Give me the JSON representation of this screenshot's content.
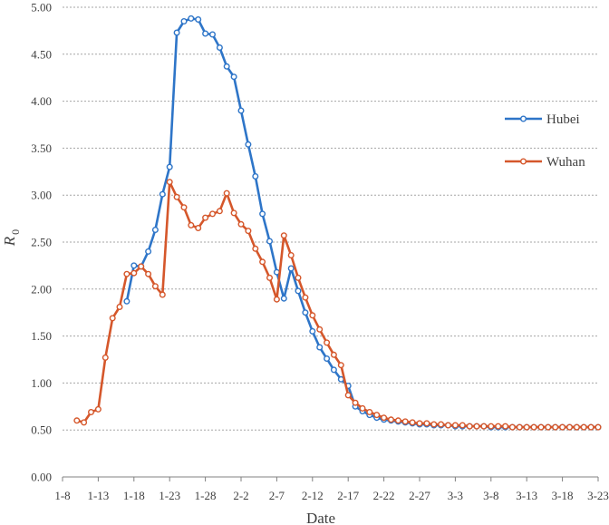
{
  "chart_data": {
    "type": "line",
    "xlabel": "Date",
    "ylabel_symbol": "R",
    "ylabel_subscript": "0",
    "ylim": [
      0,
      5
    ],
    "y_ticks": [
      "0.00",
      "0.50",
      "1.00",
      "1.50",
      "2.00",
      "2.50",
      "3.00",
      "3.50",
      "4.00",
      "4.50",
      "5.00"
    ],
    "x_ticks": [
      "1-8",
      "1-13",
      "1-18",
      "1-23",
      "1-28",
      "2-2",
      "2-7",
      "2-12",
      "2-17",
      "2-22",
      "2-27",
      "3-3",
      "3-8",
      "3-13",
      "3-18",
      "3-23"
    ],
    "grid": "horizontal dotted",
    "legend_position": "right",
    "series": [
      {
        "name": "Hubei",
        "color": "#2e75c8",
        "points": [
          [
            "1-17",
            1.87
          ],
          [
            "1-18",
            2.25
          ],
          [
            "1-19",
            2.24
          ],
          [
            "1-20",
            2.4
          ],
          [
            "1-21",
            2.63
          ],
          [
            "1-22",
            3.01
          ],
          [
            "1-23",
            3.3
          ],
          [
            "1-24",
            4.73
          ],
          [
            "1-25",
            4.85
          ],
          [
            "1-26",
            4.88
          ],
          [
            "1-27",
            4.87
          ],
          [
            "1-28",
            4.72
          ],
          [
            "1-29",
            4.71
          ],
          [
            "1-30",
            4.57
          ],
          [
            "1-31",
            4.37
          ],
          [
            "2-1",
            4.26
          ],
          [
            "2-2",
            3.9
          ],
          [
            "2-3",
            3.54
          ],
          [
            "2-4",
            3.2
          ],
          [
            "2-5",
            2.8
          ],
          [
            "2-6",
            2.51
          ],
          [
            "2-7",
            2.18
          ],
          [
            "2-8",
            1.9
          ],
          [
            "2-9",
            2.22
          ],
          [
            "2-10",
            1.98
          ],
          [
            "2-11",
            1.75
          ],
          [
            "2-12",
            1.55
          ],
          [
            "2-13",
            1.38
          ],
          [
            "2-14",
            1.26
          ],
          [
            "2-15",
            1.14
          ],
          [
            "2-16",
            1.04
          ],
          [
            "2-17",
            0.97
          ],
          [
            "2-18",
            0.75
          ],
          [
            "2-19",
            0.7
          ],
          [
            "2-20",
            0.66
          ],
          [
            "2-21",
            0.63
          ],
          [
            "2-22",
            0.61
          ],
          [
            "2-23",
            0.6
          ],
          [
            "2-24",
            0.59
          ],
          [
            "2-25",
            0.58
          ],
          [
            "2-26",
            0.57
          ],
          [
            "2-27",
            0.56
          ],
          [
            "2-28",
            0.56
          ],
          [
            "2-29",
            0.55
          ],
          [
            "3-1",
            0.55
          ],
          [
            "3-2",
            0.55
          ],
          [
            "3-3",
            0.54
          ],
          [
            "3-4",
            0.54
          ],
          [
            "3-5",
            0.54
          ],
          [
            "3-6",
            0.54
          ],
          [
            "3-7",
            0.54
          ],
          [
            "3-8",
            0.53
          ],
          [
            "3-9",
            0.53
          ],
          [
            "3-10",
            0.53
          ],
          [
            "3-11",
            0.53
          ],
          [
            "3-12",
            0.53
          ],
          [
            "3-13",
            0.53
          ],
          [
            "3-14",
            0.53
          ],
          [
            "3-15",
            0.53
          ],
          [
            "3-16",
            0.53
          ],
          [
            "3-17",
            0.53
          ],
          [
            "3-18",
            0.53
          ],
          [
            "3-19",
            0.53
          ],
          [
            "3-20",
            0.53
          ],
          [
            "3-21",
            0.53
          ],
          [
            "3-22",
            0.53
          ],
          [
            "3-23",
            0.53
          ]
        ]
      },
      {
        "name": "Wuhan",
        "color": "#d5572b",
        "points": [
          [
            "1-10",
            0.6
          ],
          [
            "1-11",
            0.58
          ],
          [
            "1-12",
            0.69
          ],
          [
            "1-13",
            0.72
          ],
          [
            "1-14",
            1.27
          ],
          [
            "1-15",
            1.69
          ],
          [
            "1-16",
            1.81
          ],
          [
            "1-17",
            2.16
          ],
          [
            "1-18",
            2.17
          ],
          [
            "1-19",
            2.24
          ],
          [
            "1-20",
            2.16
          ],
          [
            "1-21",
            2.03
          ],
          [
            "1-22",
            1.94
          ],
          [
            "1-23",
            3.14
          ],
          [
            "1-24",
            2.98
          ],
          [
            "1-25",
            2.87
          ],
          [
            "1-26",
            2.68
          ],
          [
            "1-27",
            2.65
          ],
          [
            "1-28",
            2.76
          ],
          [
            "1-29",
            2.8
          ],
          [
            "1-30",
            2.83
          ],
          [
            "1-31",
            3.02
          ],
          [
            "2-1",
            2.81
          ],
          [
            "2-2",
            2.69
          ],
          [
            "2-3",
            2.62
          ],
          [
            "2-4",
            2.43
          ],
          [
            "2-5",
            2.29
          ],
          [
            "2-6",
            2.12
          ],
          [
            "2-7",
            1.89
          ],
          [
            "2-8",
            2.57
          ],
          [
            "2-9",
            2.36
          ],
          [
            "2-10",
            2.12
          ],
          [
            "2-11",
            1.91
          ],
          [
            "2-12",
            1.72
          ],
          [
            "2-13",
            1.57
          ],
          [
            "2-14",
            1.43
          ],
          [
            "2-15",
            1.3
          ],
          [
            "2-16",
            1.19
          ],
          [
            "2-17",
            0.87
          ],
          [
            "2-18",
            0.79
          ],
          [
            "2-19",
            0.73
          ],
          [
            "2-20",
            0.69
          ],
          [
            "2-21",
            0.66
          ],
          [
            "2-22",
            0.63
          ],
          [
            "2-23",
            0.61
          ],
          [
            "2-24",
            0.6
          ],
          [
            "2-25",
            0.59
          ],
          [
            "2-26",
            0.58
          ],
          [
            "2-27",
            0.57
          ],
          [
            "2-28",
            0.57
          ],
          [
            "2-29",
            0.56
          ],
          [
            "3-1",
            0.56
          ],
          [
            "3-2",
            0.55
          ],
          [
            "3-3",
            0.55
          ],
          [
            "3-4",
            0.55
          ],
          [
            "3-5",
            0.54
          ],
          [
            "3-6",
            0.54
          ],
          [
            "3-7",
            0.54
          ],
          [
            "3-8",
            0.54
          ],
          [
            "3-9",
            0.54
          ],
          [
            "3-10",
            0.54
          ],
          [
            "3-11",
            0.53
          ],
          [
            "3-12",
            0.53
          ],
          [
            "3-13",
            0.53
          ],
          [
            "3-14",
            0.53
          ],
          [
            "3-15",
            0.53
          ],
          [
            "3-16",
            0.53
          ],
          [
            "3-17",
            0.53
          ],
          [
            "3-18",
            0.53
          ],
          [
            "3-19",
            0.53
          ],
          [
            "3-20",
            0.53
          ],
          [
            "3-21",
            0.53
          ],
          [
            "3-22",
            0.53
          ],
          [
            "3-23",
            0.53
          ]
        ]
      }
    ]
  }
}
